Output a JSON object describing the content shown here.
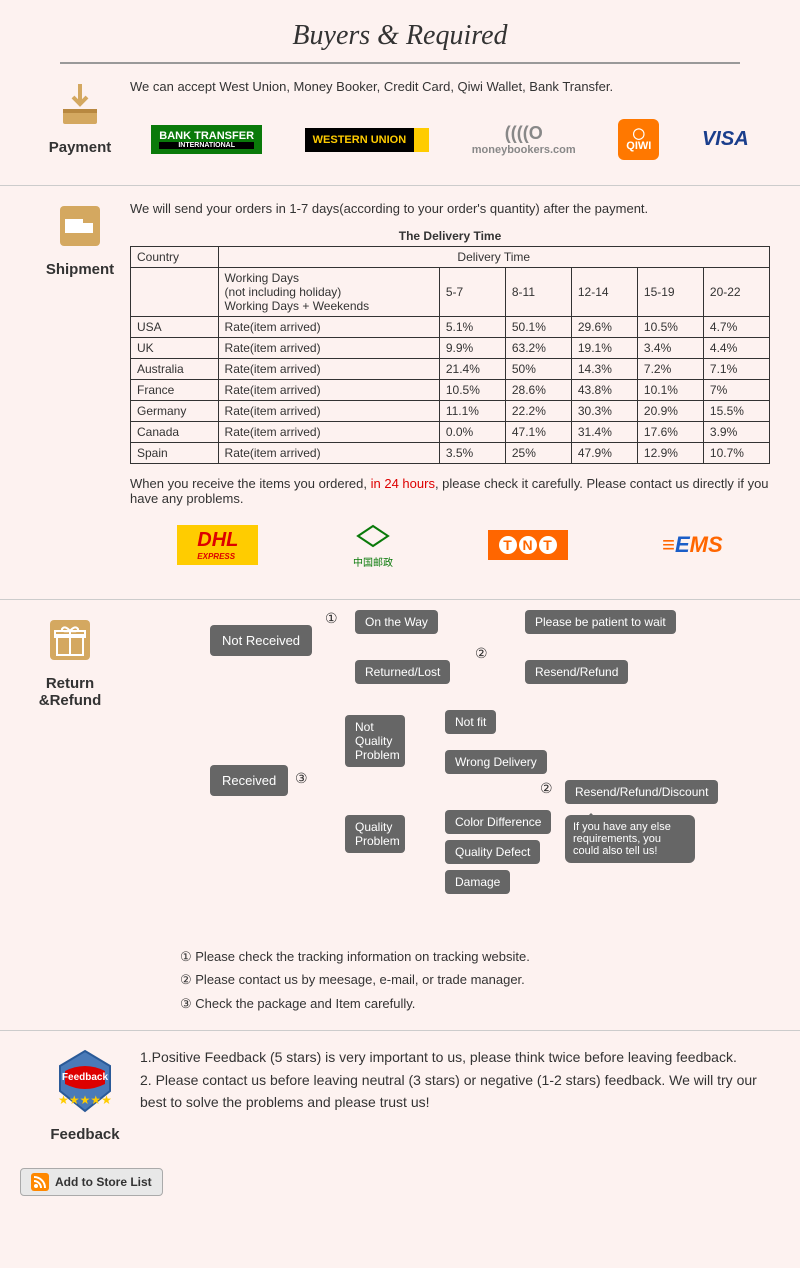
{
  "title": "Buyers & Required",
  "payment": {
    "label": "Payment",
    "text": "We can accept West Union, Money Booker, Credit Card, Qiwi Wallet, Bank Transfer.",
    "logos": {
      "bank_transfer": "BANK TRANSFER",
      "bank_transfer_sub": "INTERNATIONAL",
      "western_union": "WESTERN UNION",
      "moneybookers": "moneybookers.com",
      "qiwi": "QIWI",
      "visa": "VISA"
    }
  },
  "shipment": {
    "label": "Shipment",
    "intro": "We will send your orders in 1-7 days(according to your order's quantity) after the payment.",
    "table_title": "The Delivery Time",
    "headers": {
      "country": "Country",
      "delivery_time": "Delivery Time",
      "working_days": "Working Days\n(not including holiday)\nWorking Days + Weekends",
      "cols": [
        "5-7",
        "8-11",
        "12-14",
        "15-19",
        "20-22"
      ]
    },
    "rate_label": "Rate(item arrived)",
    "rows": [
      {
        "country": "USA",
        "rates": [
          "5.1%",
          "50.1%",
          "29.6%",
          "10.5%",
          "4.7%"
        ]
      },
      {
        "country": "UK",
        "rates": [
          "9.9%",
          "63.2%",
          "19.1%",
          "3.4%",
          "4.4%"
        ]
      },
      {
        "country": "Australia",
        "rates": [
          "21.4%",
          "50%",
          "14.3%",
          "7.2%",
          "7.1%"
        ]
      },
      {
        "country": "France",
        "rates": [
          "10.5%",
          "28.6%",
          "43.8%",
          "10.1%",
          "7%"
        ]
      },
      {
        "country": "Germany",
        "rates": [
          "11.1%",
          "22.2%",
          "30.3%",
          "20.9%",
          "15.5%"
        ]
      },
      {
        "country": "Canada",
        "rates": [
          "0.0%",
          "47.1%",
          "31.4%",
          "17.6%",
          "3.9%"
        ]
      },
      {
        "country": "Spain",
        "rates": [
          "3.5%",
          "25%",
          "47.9%",
          "12.9%",
          "10.7%"
        ]
      }
    ],
    "note_pre": "When you receive the items you ordered, ",
    "note_red": "in 24 hours",
    "note_post": ", please check it carefully. Please contact us directly if you have any problems.",
    "carriers": {
      "dhl": "DHL",
      "dhl_sub": "EXPRESS",
      "china_post": "中国邮政",
      "tnt": "TNT",
      "ems": "EMS"
    }
  },
  "return_refund": {
    "label": "Return &Refund",
    "flow": {
      "not_received": "Not Received",
      "on_the_way": "On the Way",
      "please_patient": "Please be patient to wait",
      "returned_lost": "Returned/Lost",
      "resend_refund": "Resend/Refund",
      "received": "Received",
      "not_quality": "Not Quality Problem",
      "quality": "Quality Problem",
      "not_fit": "Not fit",
      "wrong_delivery": "Wrong Delivery",
      "color_diff": "Color Difference",
      "quality_defect": "Quality Defect",
      "damage": "Damage",
      "resend_refund_discount": "Resend/Refund/Discount",
      "speech": "If you have any else requirements, you could also tell us!",
      "c1": "①",
      "c2": "②",
      "c3": "③"
    },
    "notes": [
      "① Please check the tracking information on tracking website.",
      "② Please contact us by meesage, e-mail, or trade manager.",
      "③ Check the package and Item carefully."
    ]
  },
  "feedback": {
    "label": "Feedback",
    "text1": "1.Positive Feedback (5 stars) is very important to us, please think twice before leaving feedback.",
    "text2": "2. Please contact us before leaving neutral (3 stars) or negative (1-2 stars) feedback. We will try our best to solve the problems and please trust us!"
  },
  "add_store": "Add to Store List"
}
